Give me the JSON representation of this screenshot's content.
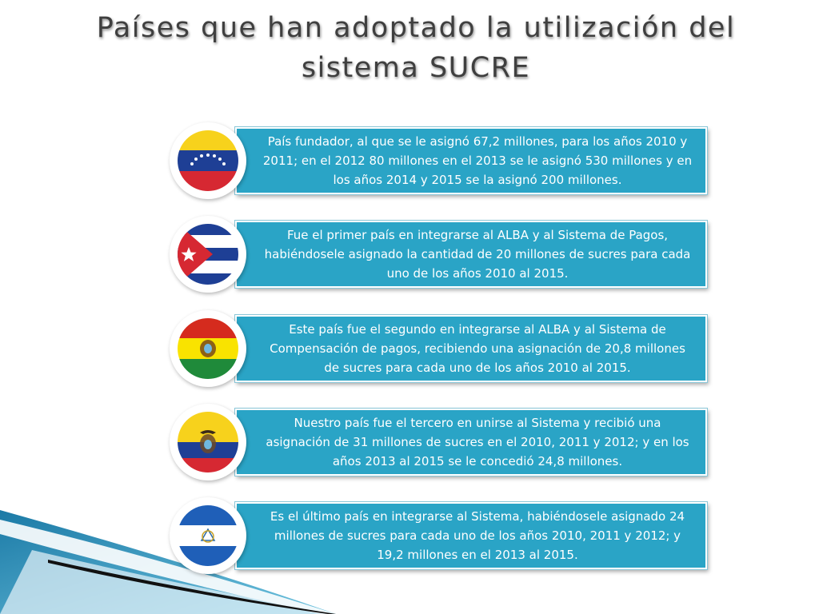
{
  "slide": {
    "title_line1": "Países que han adoptado la utilización del",
    "title_line2": "sistema SUCRE"
  },
  "colors": {
    "box_fill": "#2aa4c6",
    "title_text": "#3f3f3f",
    "accent_stripe": "#1b7aa6"
  },
  "countries": [
    {
      "icon": "venezuela-flag-icon",
      "text": "País fundador, al que se le asignó 67,2 millones, para los años 2010 y 2011; en el 2012 80 millones en el 2013 se le asignó 530 millones  y en los años 2014 y 2015 se la asignó 200 millones."
    },
    {
      "icon": "cuba-flag-icon",
      "text": "Fue el primer país en integrarse al ALBA y al Sistema de Pagos, habiéndosele asignado la cantidad de 20 millones de sucres para cada uno de los años 2010 al 2015."
    },
    {
      "icon": "bolivia-flag-icon",
      "text": "Este país fue el segundo en integrarse al ALBA y al Sistema de Compensación de pagos, recibiendo una asignación de 20,8 millones de sucres para cada uno de los años 2010 al 2015."
    },
    {
      "icon": "ecuador-flag-icon",
      "text": "Nuestro país fue el tercero en unirse al Sistema y recibió una asignación de 31 millones de sucres  en el 2010, 2011 y 2012; y en los años 2013 al 2015 se le concedió 24,8 millones."
    },
    {
      "icon": "nicaragua-flag-icon",
      "text": "Es el último país en integrarse al Sistema, habiéndosele asignado 24 millones de sucres para cada uno de los años 2010, 2011 y 2012; y 19,2 millones  en  el 2013 al 2015."
    }
  ]
}
